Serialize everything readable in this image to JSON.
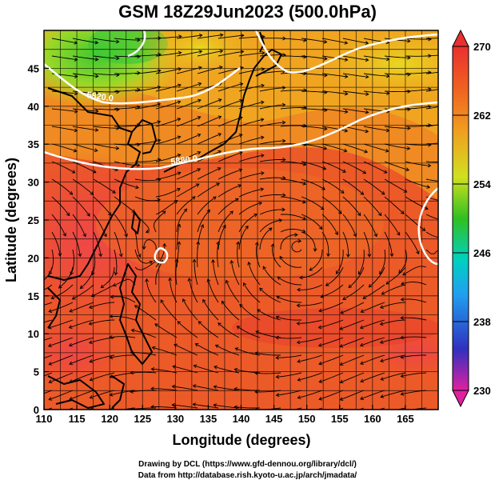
{
  "title": "GSM 18Z29Jun2023 (500.0hPa)",
  "credits": {
    "line1": "Drawing by DCL (https://www.gfd-dennou.org/library/dcl/)",
    "line2": "Data from http://database.rish.kyoto-u.ac.jp/arch/jmadata/"
  },
  "chart_data": {
    "type": "heatmap",
    "title": "GSM 18Z29Jun2023 (500.0hPa)",
    "xlabel": "Longitude (degrees)",
    "ylabel": "Latitude  (degrees)",
    "xlim": [
      110,
      170
    ],
    "ylim": [
      0,
      50
    ],
    "x_ticks": [
      "110",
      "115",
      "120",
      "125",
      "130",
      "135",
      "140",
      "145",
      "150",
      "155",
      "160",
      "165"
    ],
    "y_ticks": [
      "0",
      "5",
      "10",
      "15",
      "20",
      "25",
      "30",
      "35",
      "40",
      "45"
    ],
    "colorbar": {
      "range": [
        230,
        270
      ],
      "labels": [
        "270",
        "262",
        "254",
        "246",
        "238",
        "230"
      ],
      "colors": [
        "#d62060",
        "#2020c0",
        "#00c8d0",
        "#20c020",
        "#f0e020",
        "#f08020",
        "#e83020"
      ]
    },
    "contour_labels": [
      {
        "text": "5820.0",
        "lon": 121,
        "lat": 44.5
      },
      {
        "text": "5880.0",
        "lon": 129,
        "lat": 36
      }
    ],
    "streamlines": true,
    "grid": true
  }
}
